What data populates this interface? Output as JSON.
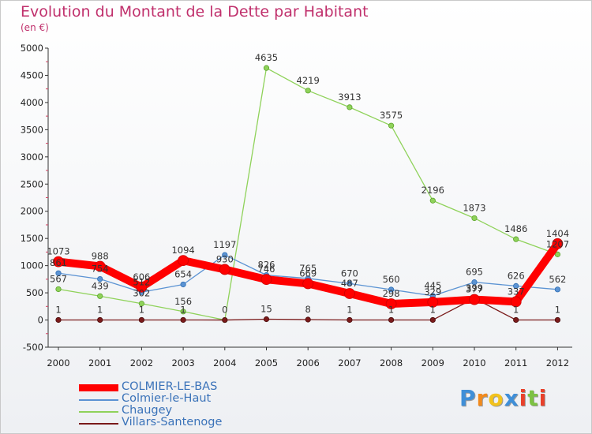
{
  "title": "Evolution du Montant de la Dette par Habitant",
  "subtitle": "(en €)",
  "chart_data": {
    "type": "line",
    "title": "Evolution du Montant de la Dette par Habitant",
    "subtitle": "(en €)",
    "x": [
      "2000",
      "2001",
      "2002",
      "2003",
      "2004",
      "2005",
      "2006",
      "2007",
      "2008",
      "2009",
      "2010",
      "2011",
      "2012"
    ],
    "yticks": [
      "5000",
      "4500",
      "4000",
      "3500",
      "3000",
      "2500",
      "2000",
      "1500",
      "1000",
      "500",
      "0",
      "-500"
    ],
    "ylim": [
      -500,
      5000
    ],
    "grid": false,
    "legend_position": "bottom-left",
    "series": [
      {
        "name": "COLMIER-LE-BAS",
        "color": "#ff0000",
        "values": [
          1073,
          988,
          606,
          1094,
          930,
          746,
          669,
          487,
          298,
          329,
          377,
          337,
          1404
        ],
        "labels": [
          "1073",
          "988",
          "606",
          "1094",
          "930",
          "746",
          "669",
          "487",
          "298",
          "329",
          "377",
          "337",
          "1404"
        ]
      },
      {
        "name": "Colmier-le-Haut",
        "color": "#5b93d3",
        "values": [
          861,
          754,
          512,
          654,
          1197,
          826,
          765,
          670,
          560,
          445,
          695,
          626,
          562
        ],
        "labels": [
          "861",
          "754",
          "512",
          "654",
          "1197",
          "826",
          "765",
          "670",
          "560",
          "445",
          "695",
          "626",
          "562"
        ]
      },
      {
        "name": "Chaugey",
        "color": "#8fd25a",
        "values": [
          567,
          439,
          302,
          156,
          0,
          4635,
          4219,
          3913,
          3575,
          2196,
          1873,
          1486,
          1207
        ],
        "labels": [
          "567",
          "439",
          "302",
          "156",
          "0",
          "4635",
          "4219",
          "3913",
          "3575",
          "2196",
          "1873",
          "1486",
          "1207"
        ]
      },
      {
        "name": "Villars-Santenoge",
        "color": "#7a1a1a",
        "values": [
          1,
          1,
          1,
          1,
          0,
          15,
          8,
          1,
          1,
          1,
          399,
          1,
          1
        ],
        "labels": [
          "1",
          "1",
          "1",
          "1",
          "",
          "15",
          "8",
          "1",
          "1",
          "1",
          "399",
          "1",
          "1"
        ]
      }
    ]
  },
  "logo": {
    "letters": [
      "P",
      "r",
      "o",
      "x",
      "i",
      "t",
      "i"
    ],
    "colors": [
      "#3f8fd8",
      "#f28a1c",
      "#f2c21c",
      "#3f8fd8",
      "#e8412b",
      "#7cc242",
      "#e8412b"
    ]
  }
}
